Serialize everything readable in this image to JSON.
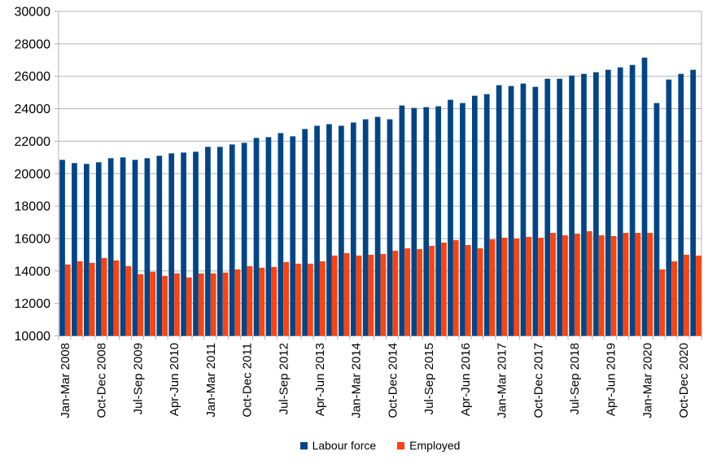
{
  "chart_data": {
    "type": "bar",
    "title": "",
    "xlabel": "",
    "ylabel": "",
    "ylim": [
      10000,
      30000
    ],
    "ytick_step": 2000,
    "yticks": [
      10000,
      12000,
      14000,
      16000,
      18000,
      20000,
      22000,
      24000,
      26000,
      28000,
      30000
    ],
    "grid": "horizontal",
    "legend_position": "bottom",
    "axis_color": "#b3b3b3",
    "text_color": "#000000",
    "xtick_label_interval": 3,
    "categories": [
      "Jan-Mar 2008",
      "Apr-Jun 2008",
      "Jul-Sep 2008",
      "Oct-Dec 2008",
      "Jan-Mar 2009",
      "Apr-Jun 2009",
      "Jul-Sep 2009",
      "Oct-Dec 2009",
      "Jan-Mar 2010",
      "Apr-Jun 2010",
      "Jul-Sep 2010",
      "Oct-Dec 2010",
      "Jan-Mar 2011",
      "Apr-Jun 2011",
      "Jul-Sep 2011",
      "Oct-Dec 2011",
      "Jan-Mar 2012",
      "Apr-Jun 2012",
      "Jul-Sep 2012",
      "Oct-Dec 2012",
      "Jan-Mar 2013",
      "Apr-Jun 2013",
      "Jul-Sep 2013",
      "Oct-Dec 2013",
      "Jan-Mar 2014",
      "Apr-Jun 2014",
      "Jul-Sep 2014",
      "Oct-Dec 2014",
      "Jan-Mar 2015",
      "Apr-Jun 2015",
      "Jul-Sep 2015",
      "Oct-Dec 2015",
      "Jan-Mar 2016",
      "Apr-Jun 2016",
      "Jul-Sep 2016",
      "Oct-Dec 2016",
      "Jan-Mar 2017",
      "Apr-Jun 2017",
      "Jul-Sep 2017",
      "Oct-Dec 2017",
      "Jan-Mar 2018",
      "Apr-Jun 2018",
      "Jul-Sep 2018",
      "Oct-Dec 2018",
      "Jan-Mar 2019",
      "Apr-Jun 2019",
      "Jul-Sep 2019",
      "Oct-Dec 2019",
      "Jan-Mar 2020",
      "Apr-Jun 2020",
      "Jul-Sep 2020",
      "Oct-Dec 2020",
      "Jan-Mar 2021"
    ],
    "series": [
      {
        "name": "Labour force",
        "color": "#004586",
        "values": [
          20850,
          20650,
          20600,
          20700,
          20950,
          21000,
          20850,
          20950,
          21100,
          21250,
          21300,
          21350,
          21650,
          21650,
          21800,
          21900,
          22200,
          22250,
          22500,
          22300,
          22750,
          22950,
          23050,
          22950,
          23150,
          23350,
          23500,
          23350,
          24200,
          24050,
          24100,
          24150,
          24550,
          24350,
          24800,
          24900,
          25450,
          25400,
          25550,
          25350,
          25850,
          25850,
          26050,
          26150,
          26250,
          26400,
          26550,
          26700,
          27150,
          24350,
          25800,
          26150,
          26400
        ]
      },
      {
        "name": "Employed",
        "color": "#FF420E",
        "values": [
          14400,
          14600,
          14500,
          14800,
          14650,
          14300,
          13800,
          13950,
          13700,
          13850,
          13600,
          13850,
          13850,
          13900,
          14100,
          14300,
          14200,
          14250,
          14550,
          14450,
          14450,
          14600,
          14950,
          15100,
          14950,
          15000,
          15050,
          15250,
          15400,
          15350,
          15550,
          15750,
          15900,
          15600,
          15400,
          15950,
          16050,
          16000,
          16100,
          16050,
          16350,
          16200,
          16300,
          16450,
          16200,
          16150,
          16350,
          16350,
          16350,
          14100,
          14600,
          15000,
          14950
        ]
      }
    ]
  }
}
